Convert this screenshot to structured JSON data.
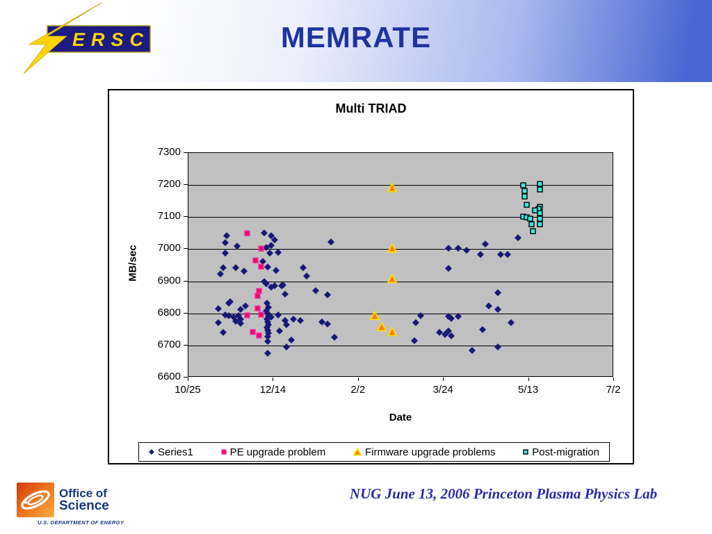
{
  "header": {
    "title": "MEMRATE"
  },
  "nersc_logo": {
    "text": "ERSC"
  },
  "footer": {
    "text": "NUG June 13, 2006 Princeton Plasma Physics Lab"
  },
  "office_logo": {
    "line1": "Office of",
    "line2": "Science",
    "subtext": "U.S. DEPARTMENT OF ENERGY"
  },
  "chart_data": {
    "type": "scatter",
    "title": "Multi TRIAD",
    "xlabel": "Date",
    "ylabel": "MB/sec",
    "ylim": [
      6600,
      7300
    ],
    "yticks": [
      6600,
      6700,
      6800,
      6900,
      7000,
      7100,
      7200,
      7300
    ],
    "xtick_labels": [
      "10/25",
      "12/14",
      "2/2",
      "3/24",
      "5/13",
      "7/2"
    ],
    "xtick_days": [
      0,
      50,
      100,
      150,
      200,
      250
    ],
    "x_days_range": [
      0,
      250
    ],
    "plot_bg": "#c0c0c0",
    "grid_color": "#000000",
    "legend_position": "bottom",
    "series": [
      {
        "name": "Series1",
        "marker": "diamond",
        "color": "#181878",
        "border": "#181878",
        "points": [
          [
            23,
            7040
          ],
          [
            22,
            7018
          ],
          [
            29,
            7008
          ],
          [
            22,
            6985
          ],
          [
            45,
            7048
          ],
          [
            49,
            7040
          ],
          [
            51,
            7028
          ],
          [
            46,
            7004
          ],
          [
            49,
            7010
          ],
          [
            48,
            6985
          ],
          [
            53,
            6989
          ],
          [
            44,
            6960
          ],
          [
            47,
            6943
          ],
          [
            21,
            6941
          ],
          [
            28,
            6941
          ],
          [
            19,
            6921
          ],
          [
            33,
            6930
          ],
          [
            52,
            6932
          ],
          [
            68,
            6941
          ],
          [
            70,
            6915
          ],
          [
            46,
            6891
          ],
          [
            49,
            6880
          ],
          [
            55,
            6884
          ],
          [
            57,
            6858
          ],
          [
            45,
            6897
          ],
          [
            51,
            6884
          ],
          [
            56,
            6886
          ],
          [
            75,
            6868
          ],
          [
            82,
            6855
          ],
          [
            84,
            7020
          ],
          [
            25,
            6834
          ],
          [
            18,
            6813
          ],
          [
            24,
            6830
          ],
          [
            22,
            6793
          ],
          [
            24,
            6791
          ],
          [
            27,
            6787
          ],
          [
            30,
            6791
          ],
          [
            31,
            6780
          ],
          [
            18,
            6769
          ],
          [
            21,
            6739
          ],
          [
            31,
            6810
          ],
          [
            28,
            6773
          ],
          [
            31,
            6767
          ],
          [
            34,
            6821
          ],
          [
            46.5,
            6830
          ],
          [
            47.3,
            6817
          ],
          [
            46.1,
            6806
          ],
          [
            46.9,
            6797
          ],
          [
            47.3,
            6788
          ],
          [
            46.5,
            6780
          ],
          [
            46.9,
            6771
          ],
          [
            47.3,
            6762
          ],
          [
            46.5,
            6754
          ],
          [
            46.9,
            6745
          ],
          [
            47.3,
            6736
          ],
          [
            46.9,
            6725
          ],
          [
            46.9,
            6711
          ],
          [
            46.9,
            6673
          ],
          [
            49,
            6786
          ],
          [
            53,
            6793
          ],
          [
            57,
            6775
          ],
          [
            58,
            6762
          ],
          [
            54,
            6743
          ],
          [
            61,
            6715
          ],
          [
            58,
            6693
          ],
          [
            62,
            6780
          ],
          [
            66,
            6776
          ],
          [
            79,
            6771
          ],
          [
            82,
            6765
          ],
          [
            86,
            6723
          ],
          [
            133,
            6713
          ],
          [
            134,
            6770
          ],
          [
            137,
            6791
          ],
          [
            148,
            6738
          ],
          [
            151,
            6732
          ],
          [
            153,
            6743
          ],
          [
            155,
            6727
          ],
          [
            153,
            7000
          ],
          [
            159,
            7002
          ],
          [
            164,
            6994
          ],
          [
            175,
            7013
          ],
          [
            172,
            6981
          ],
          [
            184,
            6981
          ],
          [
            188,
            6981
          ],
          [
            153,
            6938
          ],
          [
            182,
            6862
          ],
          [
            177,
            6821
          ],
          [
            182,
            6811
          ],
          [
            153,
            6789
          ],
          [
            155,
            6781
          ],
          [
            159,
            6789
          ],
          [
            190,
            6768
          ],
          [
            173,
            6747
          ],
          [
            167,
            6683
          ],
          [
            182,
            6694
          ],
          [
            194,
            7034
          ]
        ]
      },
      {
        "name": "PE upgrade problem",
        "marker": "square",
        "color": "#e01060",
        "border": "#ff28b4",
        "points": [
          [
            35,
            7048
          ],
          [
            43,
            6999
          ],
          [
            40,
            6962
          ],
          [
            43,
            6944
          ],
          [
            42,
            6867
          ],
          [
            41,
            6852
          ],
          [
            41,
            6813
          ],
          [
            43,
            6793
          ],
          [
            35,
            6791
          ],
          [
            38,
            6739
          ],
          [
            42,
            6728
          ]
        ]
      },
      {
        "name": "Firmware upgrade problems",
        "marker": "triangle",
        "color": "#fb7e00",
        "border": "#ffdf00",
        "points": [
          [
            120,
            7190
          ],
          [
            120,
            7000
          ],
          [
            120,
            6905
          ],
          [
            110,
            6790
          ],
          [
            114,
            6757
          ],
          [
            120,
            6740
          ]
        ]
      },
      {
        "name": "Post-migration",
        "marker": "square",
        "color": "#3be8e0",
        "border": "#000000",
        "points": [
          [
            197,
            7196
          ],
          [
            207,
            7202
          ],
          [
            207,
            7185
          ],
          [
            198,
            7179
          ],
          [
            198,
            7162
          ],
          [
            199,
            7136
          ],
          [
            207,
            7130
          ],
          [
            206,
            7123
          ],
          [
            204,
            7119
          ],
          [
            197,
            7100
          ],
          [
            199,
            7098
          ],
          [
            201,
            7094
          ],
          [
            207,
            7111
          ],
          [
            207,
            7094
          ],
          [
            202,
            7075
          ],
          [
            207,
            7075
          ],
          [
            203,
            7053
          ]
        ]
      }
    ]
  }
}
